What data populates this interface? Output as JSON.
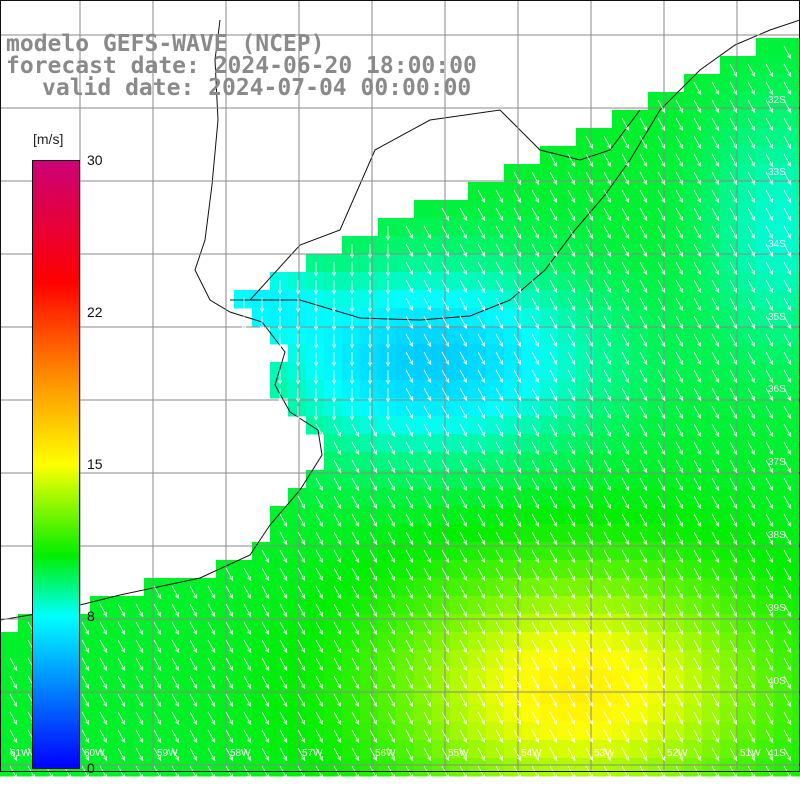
{
  "title": {
    "line1": "modelo GEFS-WAVE (NCEP)",
    "line2": "forecast date: 2024-06-20 18:00:00",
    "line3": "valid date: 2024-07-04 00:00:00"
  },
  "colorbar": {
    "unit": "[m/s]",
    "ticks": [
      "30",
      "22",
      "15",
      "8",
      "0"
    ],
    "range": [
      0,
      30
    ],
    "colors": [
      "#0000ff",
      "#0077ff",
      "#00ffff",
      "#00ee00",
      "#ffff00",
      "#ff8800",
      "#ff0000",
      "#cc0077"
    ]
  },
  "grid": {
    "lat_labels": [
      "32S",
      "33S",
      "34S",
      "35S",
      "36S",
      "37S",
      "38S",
      "39S",
      "40S",
      "41S"
    ],
    "lon_labels": [
      "61W",
      "60W",
      "59W",
      "58W",
      "57W",
      "56W",
      "55W",
      "54W",
      "53W",
      "52W",
      "51W"
    ]
  },
  "field": {
    "quantity": "wind speed",
    "land_color": "#ffffff",
    "arrow_color": "#ffffff",
    "arrow_direction": "south-southeast"
  }
}
